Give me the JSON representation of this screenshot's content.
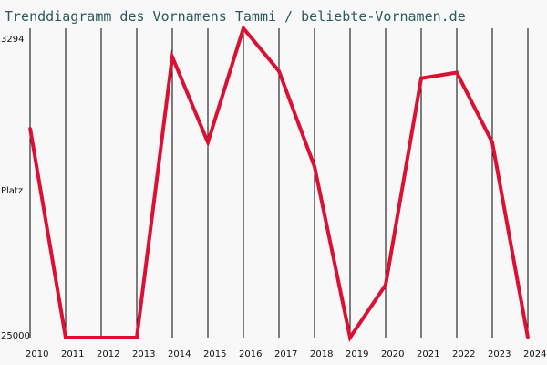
{
  "chart_data": {
    "type": "line",
    "title": "Trenddiagramm des Vornamens Tammi / beliebte-Vornamen.de",
    "ylabel": "Platz",
    "y_inverted": true,
    "ylim": [
      3294,
      25000
    ],
    "y_ticks": [
      "3294",
      "25000"
    ],
    "x": [
      "2010",
      "2011",
      "2012",
      "2013",
      "2014",
      "2015",
      "2016",
      "2017",
      "2018",
      "2019",
      "2020",
      "2021",
      "2022",
      "2023",
      "2024"
    ],
    "series": [
      {
        "values": [
          10300,
          25000,
          25000,
          25000,
          5300,
          11300,
          3294,
          6300,
          13000,
          25000,
          21300,
          6800,
          6400,
          11300,
          25000
        ]
      }
    ],
    "grid": "vertical",
    "line_color": "#dc1032",
    "legend": "none"
  }
}
